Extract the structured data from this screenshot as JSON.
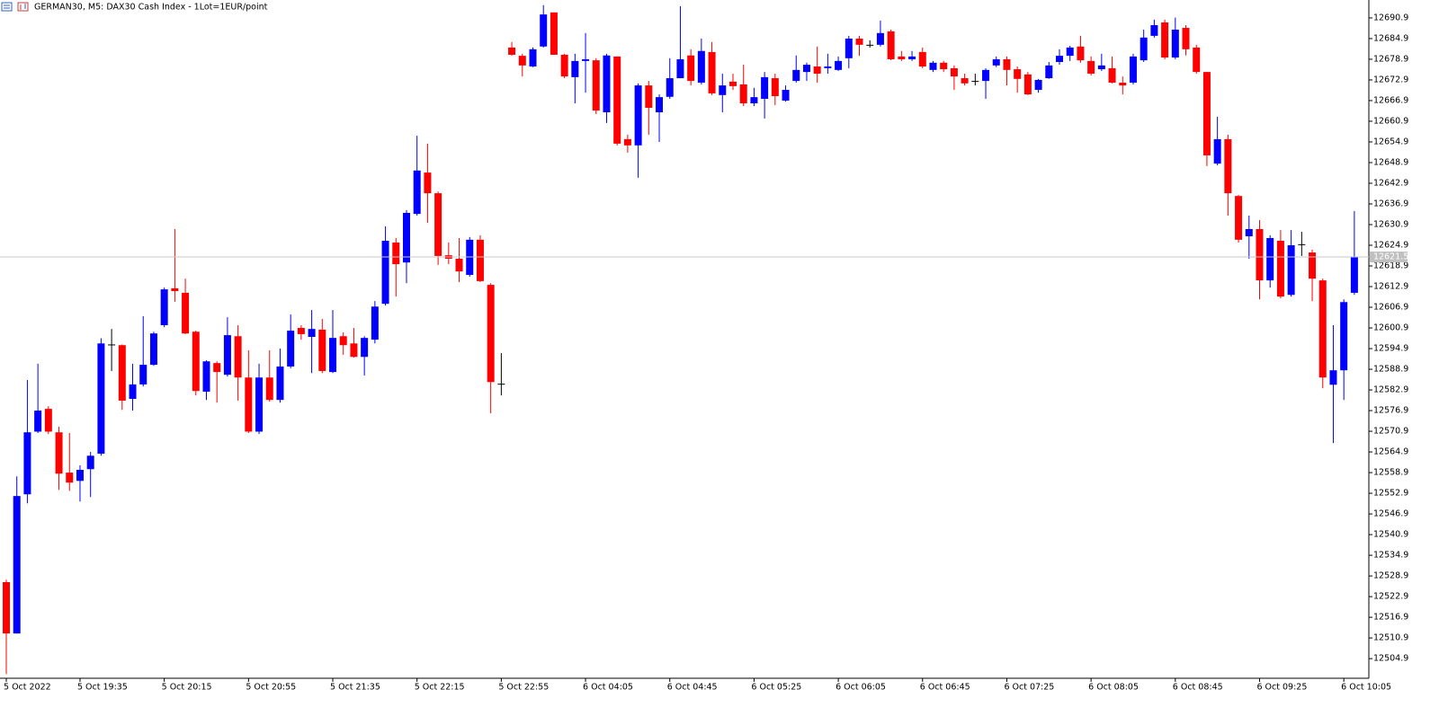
{
  "chart_data": {
    "type": "candlestick",
    "title": "GERMAN30, M5:  DAX30 Cash Index  - 1Lot=1EUR/point",
    "categories": [
      "5 Oct 2022",
      null,
      null,
      null,
      null,
      null,
      null,
      "5 Oct 19:35",
      null,
      null,
      null,
      null,
      null,
      null,
      null,
      "5 Oct 20:15",
      null,
      null,
      null,
      null,
      null,
      null,
      null,
      "5 Oct 20:55",
      null,
      null,
      null,
      null,
      null,
      null,
      null,
      "5 Oct 21:35",
      null,
      null,
      null,
      null,
      null,
      null,
      null,
      "5 Oct 22:15",
      null,
      null,
      null,
      null,
      null,
      null,
      null,
      "5 Oct 22:55",
      null,
      null,
      null,
      null,
      null,
      null,
      null,
      "6 Oct 04:05",
      null,
      null,
      null,
      null,
      null,
      null,
      null,
      "6 Oct 04:45",
      null,
      null,
      null,
      null,
      null,
      null,
      null,
      "6 Oct 05:25",
      null,
      null,
      null,
      null,
      null,
      null,
      null,
      "6 Oct 06:05",
      null,
      null,
      null,
      null,
      null,
      null,
      null,
      "6 Oct 06:45",
      null,
      null,
      null,
      null,
      null,
      null,
      null,
      "6 Oct 07:25",
      null,
      null,
      null,
      null,
      null,
      null,
      null,
      "6 Oct 08:05",
      null,
      null,
      null,
      null,
      null,
      null,
      null,
      "6 Oct 08:45",
      null,
      null,
      null,
      null,
      null,
      null,
      null,
      "6 Oct 09:25",
      null,
      null,
      null,
      null,
      null,
      null,
      null,
      "6 Oct 10:05",
      null
    ],
    "open": [
      12527.1,
      12512.2,
      12552.6,
      12570.8,
      12577.4,
      12570.6,
      12558.9,
      12556.5,
      12559.9,
      12564.4,
      12596.1,
      12595.9,
      12580.3,
      12584.5,
      12590.2,
      12601.7,
      12612.4,
      12611.1,
      12599.8,
      12582.4,
      12590.7,
      12587.3,
      12598.5,
      12586.5,
      12570.8,
      12586.5,
      12580.0,
      12589.7,
      12600.9,
      12598.3,
      12600.4,
      12588.1,
      12598.5,
      12596.4,
      12592.5,
      12597.5,
      12607.9,
      12625.7,
      12619.9,
      12634.0,
      12646.0,
      12640.0,
      12622.0,
      12621.0,
      12616.3,
      12626.5,
      12613.4,
      12584.7,
      12682.3,
      12679.9,
      12676.8,
      12682.6,
      12692.5,
      12680.2,
      12673.7,
      12678.4,
      12678.6,
      12663.5,
      12679.7,
      12655.7,
      12653.9,
      12671.3,
      12663.5,
      12668.0,
      12673.4,
      12680.0,
      12672.1,
      12681.0,
      12668.5,
      12672.4,
      12671.6,
      12666.1,
      12667.4,
      12673.4,
      12666.9,
      12672.6,
      12675.2,
      12676.8,
      12676.3,
      12675.8,
      12679.2,
      12684.9,
      12683.1,
      12683.1,
      12687.0,
      12679.7,
      12678.9,
      12681.0,
      12675.8,
      12677.9,
      12676.3,
      12673.4,
      12672.6,
      12672.6,
      12677.1,
      12678.9,
      12676.0,
      12674.5,
      12670.0,
      12673.4,
      12678.1,
      12679.9,
      12682.6,
      12678.4,
      12676.0,
      12676.3,
      12672.1,
      12672.1,
      12678.6,
      12685.7,
      12689.6,
      12679.4,
      12688.0,
      12682.3,
      12675.2,
      12648.6,
      12655.7,
      12639.2,
      12627.5,
      12629.6,
      12614.7,
      12626.2,
      12610.5,
      12625.2,
      12622.8,
      12614.7,
      12584.4,
      12588.6,
      12611.1
    ],
    "high": [
      12527.8,
      12557.8,
      12585.8,
      12590.5,
      12578.2,
      12572.2,
      12570.4,
      12561.0,
      12564.9,
      12597.9,
      12600.6,
      12596.1,
      12590.5,
      12604.3,
      12599.8,
      12612.6,
      12629.6,
      12615.2,
      12600.1,
      12591.5,
      12591.2,
      12604.0,
      12601.7,
      12594.4,
      12590.5,
      12594.4,
      12594.9,
      12604.8,
      12601.7,
      12606.1,
      12603.5,
      12606.1,
      12599.6,
      12600.9,
      12598.5,
      12608.7,
      12630.4,
      12627.0,
      12635.1,
      12656.7,
      12654.4,
      12640.5,
      12625.7,
      12627.0,
      12627.3,
      12627.8,
      12613.9,
      12593.6,
      12683.9,
      12680.5,
      12682.3,
      12694.6,
      12692.5,
      12680.5,
      12680.5,
      12686.5,
      12679.2,
      12680.5,
      12679.7,
      12657.0,
      12671.9,
      12672.6,
      12668.7,
      12679.2,
      12694.3,
      12681.8,
      12684.9,
      12683.9,
      12674.7,
      12674.7,
      12677.3,
      12670.6,
      12675.2,
      12674.7,
      12671.3,
      12680.0,
      12677.9,
      12682.6,
      12680.5,
      12679.7,
      12685.7,
      12685.7,
      12684.4,
      12690.1,
      12687.5,
      12681.3,
      12681.3,
      12682.3,
      12678.4,
      12678.4,
      12677.1,
      12674.7,
      12674.7,
      12676.3,
      12679.7,
      12679.7,
      12676.8,
      12675.2,
      12673.2,
      12678.1,
      12681.8,
      12682.8,
      12685.7,
      12679.7,
      12680.5,
      12679.7,
      12673.9,
      12680.5,
      12687.5,
      12690.4,
      12690.4,
      12691.0,
      12688.8,
      12683.1,
      12675.2,
      12662.2,
      12657.0,
      12639.5,
      12633.5,
      12632.2,
      12627.8,
      12629.3,
      12629.3,
      12628.8,
      12623.6,
      12615.2,
      12601.7,
      12609.2,
      12634.8
    ],
    "low": [
      12500.4,
      12512.2,
      12550.0,
      12570.4,
      12570.1,
      12553.9,
      12553.6,
      12550.5,
      12551.8,
      12563.8,
      12588.4,
      12577.1,
      12576.9,
      12583.9,
      12589.9,
      12601.1,
      12608.5,
      12599.1,
      12581.3,
      12580.0,
      12579.2,
      12586.8,
      12579.8,
      12570.4,
      12570.1,
      12579.5,
      12579.2,
      12589.2,
      12597.5,
      12587.8,
      12587.8,
      12587.8,
      12593.1,
      12592.3,
      12587.1,
      12596.4,
      12607.4,
      12610.0,
      12613.9,
      12633.5,
      12631.4,
      12619.2,
      12619.4,
      12614.2,
      12615.8,
      12614.2,
      12576.1,
      12581.3,
      12679.9,
      12673.9,
      12676.6,
      12682.3,
      12680.2,
      12673.4,
      12666.1,
      12669.2,
      12663.0,
      12660.4,
      12653.9,
      12651.8,
      12644.5,
      12657.0,
      12654.9,
      12667.4,
      12673.4,
      12671.3,
      12671.6,
      12668.5,
      12663.5,
      12670.0,
      12665.3,
      12665.3,
      12661.7,
      12665.6,
      12666.6,
      12672.1,
      12672.6,
      12672.1,
      12674.7,
      12675.5,
      12676.3,
      12679.9,
      12682.3,
      12682.6,
      12678.6,
      12678.4,
      12678.4,
      12676.3,
      12675.2,
      12675.2,
      12670.0,
      12671.3,
      12671.3,
      12667.4,
      12676.6,
      12671.3,
      12669.2,
      12668.5,
      12669.2,
      12673.2,
      12677.3,
      12678.4,
      12677.9,
      12674.2,
      12675.5,
      12671.9,
      12668.7,
      12671.6,
      12678.1,
      12685.2,
      12678.9,
      12678.9,
      12680.0,
      12674.7,
      12647.9,
      12648.1,
      12633.5,
      12625.7,
      12621.0,
      12609.2,
      12612.6,
      12609.5,
      12610.0,
      12621.8,
      12608.7,
      12583.4,
      12567.5,
      12580.0,
      12610.5
    ],
    "close": [
      12512.2,
      12552.1,
      12570.6,
      12576.9,
      12570.8,
      12558.6,
      12556.0,
      12559.7,
      12563.8,
      12596.4,
      12596.1,
      12579.8,
      12584.5,
      12590.2,
      12599.3,
      12612.1,
      12611.6,
      12599.3,
      12582.6,
      12591.2,
      12588.1,
      12598.8,
      12586.5,
      12570.8,
      12586.5,
      12580.0,
      12589.7,
      12600.1,
      12599.1,
      12600.6,
      12588.4,
      12598.0,
      12595.9,
      12592.5,
      12598.0,
      12607.1,
      12626.2,
      12619.4,
      12634.3,
      12646.6,
      12640.0,
      12621.8,
      12621.0,
      12617.3,
      12626.5,
      12614.5,
      12585.2,
      12584.7,
      12680.2,
      12677.1,
      12681.8,
      12691.9,
      12680.2,
      12673.9,
      12678.4,
      12678.9,
      12664.0,
      12680.0,
      12654.4,
      12653.9,
      12671.3,
      12664.8,
      12667.9,
      12673.4,
      12678.9,
      12672.6,
      12681.3,
      12669.0,
      12671.3,
      12671.1,
      12666.1,
      12667.9,
      12673.7,
      12668.2,
      12670.0,
      12675.8,
      12677.3,
      12674.7,
      12676.8,
      12678.4,
      12684.9,
      12683.1,
      12683.1,
      12686.5,
      12678.9,
      12678.9,
      12679.7,
      12676.8,
      12677.9,
      12676.0,
      12673.9,
      12671.9,
      12672.6,
      12675.8,
      12678.9,
      12675.8,
      12673.2,
      12668.7,
      12672.9,
      12677.1,
      12679.9,
      12682.3,
      12678.6,
      12674.7,
      12677.1,
      12672.1,
      12671.3,
      12679.7,
      12685.2,
      12688.8,
      12679.4,
      12687.5,
      12681.8,
      12675.2,
      12651.0,
      12655.7,
      12640.0,
      12626.5,
      12629.6,
      12614.7,
      12627.0,
      12610.0,
      12624.9,
      12625.2,
      12615.2,
      12586.5,
      12588.6,
      12608.4,
      12621.5
    ],
    "up_color": "#0000ff",
    "down_color": "#ff0000",
    "doji_color": "#000000",
    "current_price": 12621.5,
    "ylim": [
      12499.2,
      12696.1
    ],
    "yticks": [
      12504.9,
      12510.9,
      12516.9,
      12522.9,
      12528.9,
      12534.9,
      12540.9,
      12546.9,
      12552.9,
      12558.9,
      12564.9,
      12570.9,
      12576.9,
      12582.9,
      12588.9,
      12594.9,
      12600.9,
      12606.9,
      12612.9,
      12618.9,
      12624.9,
      12630.9,
      12636.9,
      12642.9,
      12648.9,
      12654.9,
      12660.9,
      12666.9,
      12672.9,
      12678.9,
      12684.9,
      12690.9
    ],
    "grid": false
  }
}
